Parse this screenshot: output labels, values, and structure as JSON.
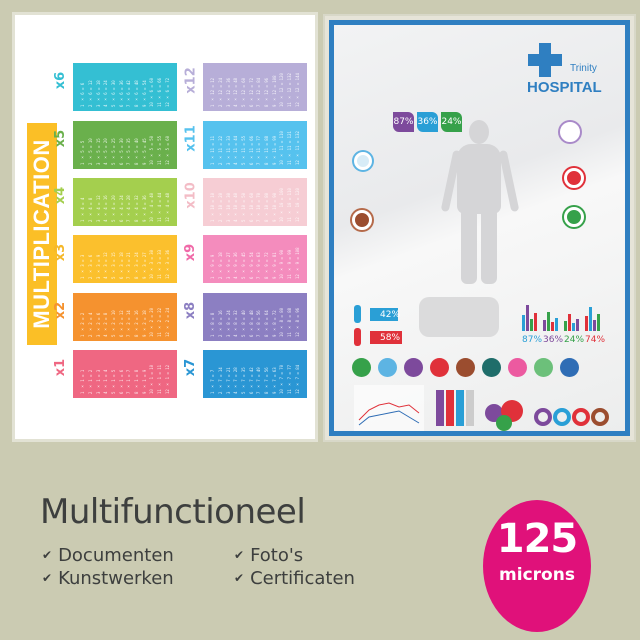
{
  "left_poster": {
    "title": "MULTIPLICATION",
    "tables": [
      {
        "label": "x6",
        "n": 6,
        "color": "#34bfd3",
        "label_color": "#34bfd3"
      },
      {
        "label": "x5",
        "n": 5,
        "color": "#6ab04c",
        "label_color": "#6ab04c"
      },
      {
        "label": "x4",
        "n": 4,
        "color": "#a4cf4e",
        "label_color": "#a4cf4e"
      },
      {
        "label": "x3",
        "n": 3,
        "color": "#fbc02d",
        "label_color": "#f5b82a"
      },
      {
        "label": "x2",
        "n": 2,
        "color": "#f5922f",
        "label_color": "#f5922f"
      },
      {
        "label": "x1",
        "n": 1,
        "color": "#ef6782",
        "label_color": "#ef6782"
      },
      {
        "label": "x12",
        "n": 12,
        "color": "#b7aed8",
        "label_color": "#b7aed8"
      },
      {
        "label": "x11",
        "n": 11,
        "color": "#56c2ee",
        "label_color": "#56c2ee"
      },
      {
        "label": "x10",
        "n": 10,
        "color": "#f6cdd4",
        "label_color": "#f3bcc6"
      },
      {
        "label": "x9",
        "n": 9,
        "color": "#f48cbd",
        "label_color": "#f06aa8"
      },
      {
        "label": "x8",
        "n": 8,
        "color": "#8c7fc2",
        "label_color": "#8c7fc2"
      },
      {
        "label": "x7",
        "n": 7,
        "color": "#2a96d4",
        "label_color": "#2a96d4"
      }
    ]
  },
  "right_poster": {
    "subtitle": "Trinity",
    "title": "HOSPITAL",
    "brand_color": "#2f7fc1",
    "top_stats": [
      {
        "value": "87%",
        "color": "#7d4a9c"
      },
      {
        "value": "36%",
        "color": "#2a9fd6"
      },
      {
        "value": "24%",
        "color": "#36a14a"
      }
    ],
    "male_pct": "42%",
    "female_pct": "58%",
    "bar_stats": [
      {
        "value": "87%",
        "color": "#2a9fd6"
      },
      {
        "value": "36%",
        "color": "#7d4a9c"
      },
      {
        "value": "24%",
        "color": "#36a14a"
      },
      {
        "value": "74%",
        "color": "#e0313a"
      }
    ]
  },
  "bottom": {
    "title": "Multifunctioneel",
    "features": [
      "Documenten",
      "Kunstwerken",
      "Foto's",
      "Certificaten"
    ],
    "check_icon": "checkmark-icon",
    "badge_number": "125",
    "badge_unit": "microns",
    "badge_color": "#e0117a"
  }
}
